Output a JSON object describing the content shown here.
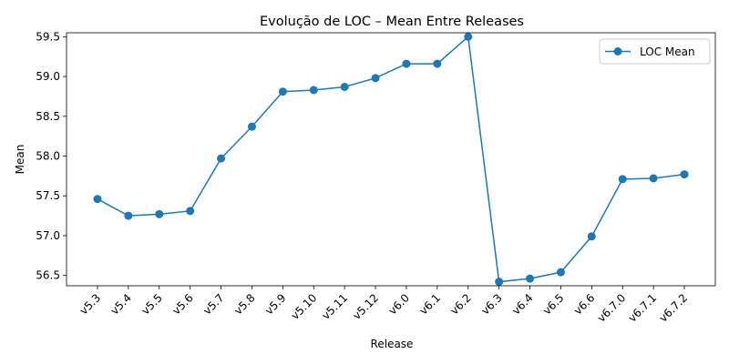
{
  "chart_data": {
    "type": "line",
    "title": "Evolução de LOC – Mean Entre Releases",
    "xlabel": "Release",
    "ylabel": "Mean",
    "categories": [
      "v5.3",
      "v5.4",
      "v5.5",
      "v5.6",
      "v5.7",
      "v5.8",
      "v5.9",
      "v5.10",
      "v5.11",
      "v5.12",
      "v6.0",
      "v6.1",
      "v6.2",
      "v6.3",
      "v6.4",
      "v6.5",
      "v6.6",
      "v6.7.0",
      "v6.7.1",
      "v6.7.2"
    ],
    "series": [
      {
        "name": "LOC Mean",
        "color": "#1f77b4",
        "values": [
          57.46,
          57.25,
          57.27,
          57.31,
          57.97,
          58.37,
          58.81,
          58.83,
          58.87,
          58.98,
          59.16,
          59.16,
          59.5,
          56.42,
          56.46,
          56.54,
          56.99,
          57.71,
          57.72,
          57.77
        ]
      }
    ],
    "ylim": [
      56.37,
      59.55
    ],
    "yticks": [
      "56.5",
      "57.0",
      "57.5",
      "58.0",
      "58.5",
      "59.0",
      "59.5"
    ],
    "grid": false,
    "legend_position": "top-right"
  }
}
